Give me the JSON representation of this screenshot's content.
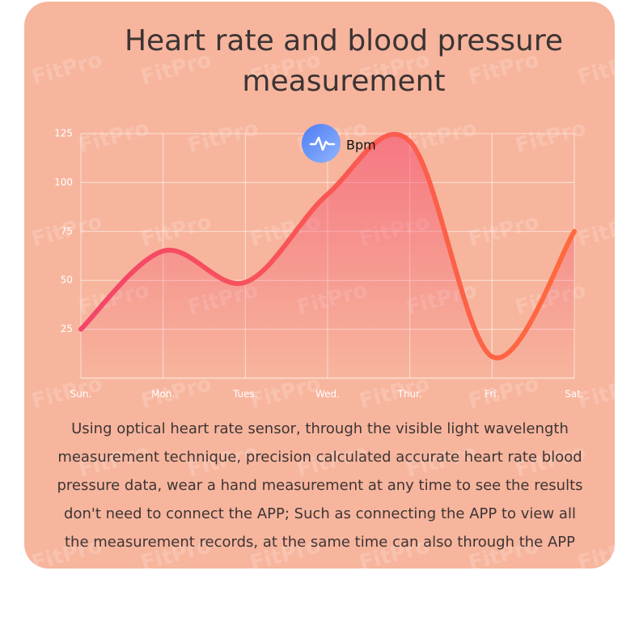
{
  "chart_data": {
    "type": "line",
    "title": "Heart rate and blood pressure measurement",
    "categories": [
      "Sun.",
      "Mon.",
      "Tues.",
      "Wed.",
      "Thur.",
      "Fri.",
      "Sat."
    ],
    "series": [
      {
        "name": "Bpm",
        "color": "#f4456b",
        "end_color": "#ff6a3d",
        "values": [
          25,
          65,
          49,
          94,
          121,
          11,
          75
        ]
      }
    ],
    "ylim": [
      0,
      125
    ],
    "yticks": [
      25,
      50,
      75,
      100,
      125
    ],
    "grid": true,
    "watermark": "FitPro",
    "description": "Using optical heart rate sensor, through the visible light wavelength measurement technique, precision calculated accurate heart rate blood pressure data, wear a hand measurement at any time to see the results don't need to connect the APP; Such as connecting the APP to view all the measurement records, at the same time can also through the APP"
  }
}
